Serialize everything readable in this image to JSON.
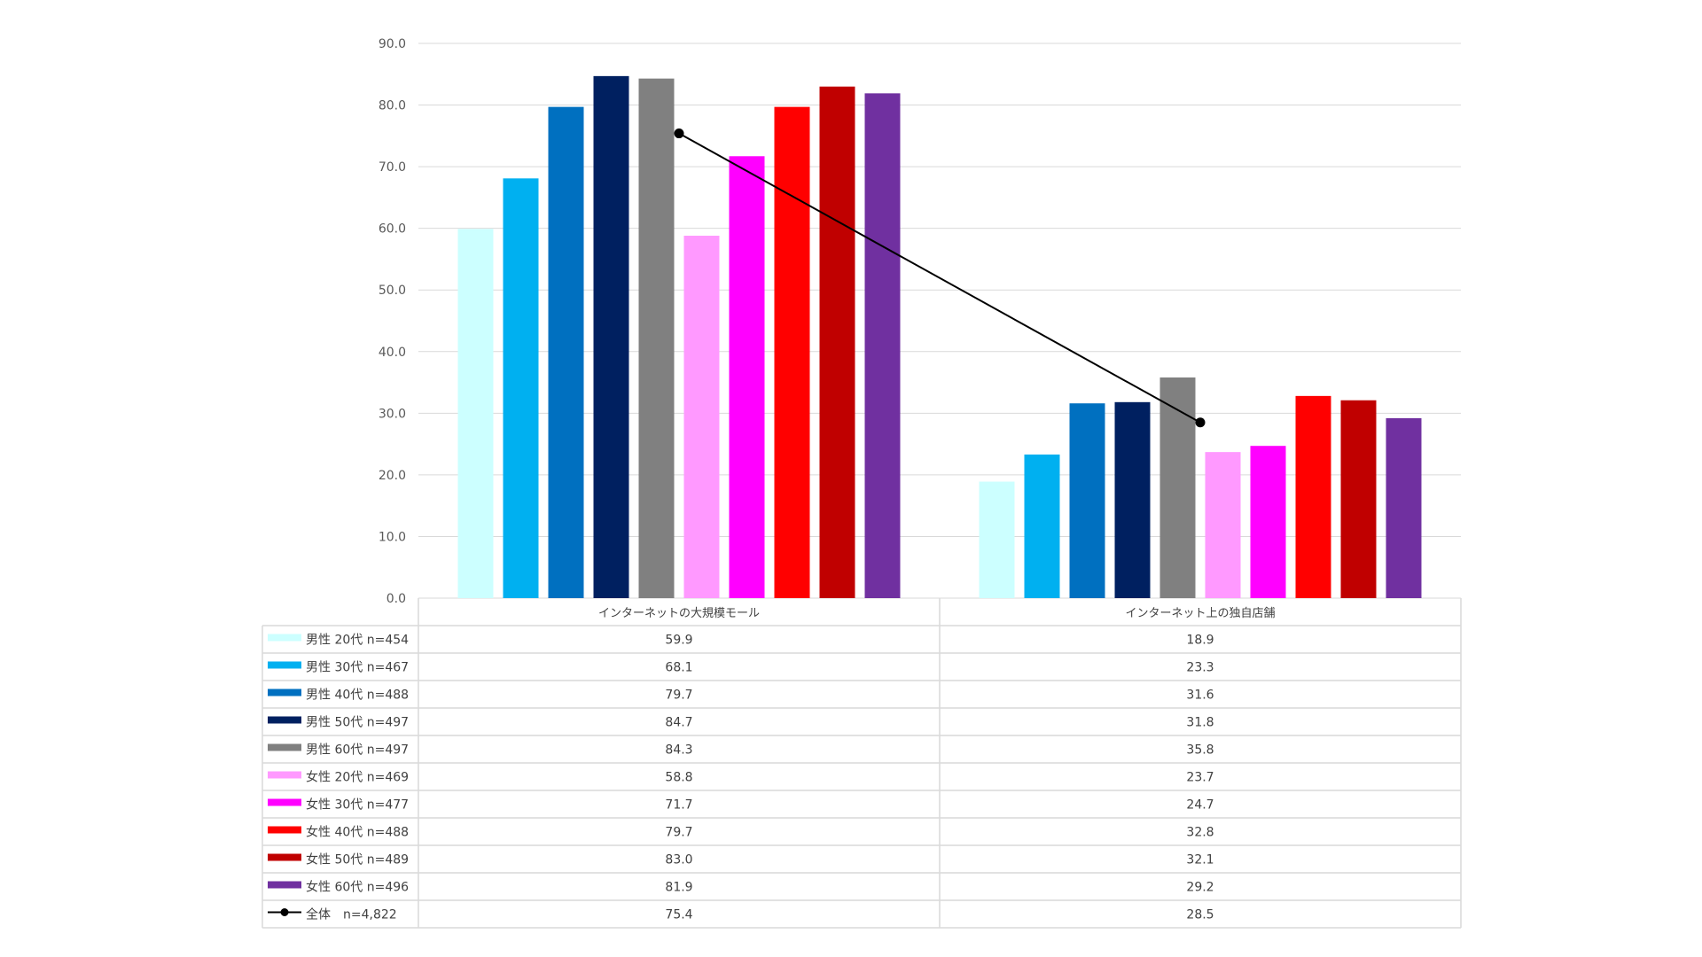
{
  "chart_data": {
    "type": "bar",
    "categories": [
      "インターネットの大規模モール",
      "インターネット上の独自店舗"
    ],
    "ylim": [
      0,
      90
    ],
    "yticks": [
      "0.0",
      "10.0",
      "20.0",
      "30.0",
      "40.0",
      "50.0",
      "60.0",
      "70.0",
      "80.0",
      "90.0"
    ],
    "grid": true,
    "legend": "data-table-left",
    "series": [
      {
        "name": "男性 20代 n=454",
        "color": "#CCFFFF",
        "values": [
          59.9,
          18.9
        ],
        "labels": [
          "59.9",
          "18.9"
        ]
      },
      {
        "name": "男性 30代 n=467",
        "color": "#00B0F0",
        "values": [
          68.1,
          23.3
        ],
        "labels": [
          "68.1",
          "23.3"
        ]
      },
      {
        "name": "男性 40代 n=488",
        "color": "#0070C0",
        "values": [
          79.7,
          31.6
        ],
        "labels": [
          "79.7",
          "31.6"
        ]
      },
      {
        "name": "男性 50代 n=497",
        "color": "#002060",
        "values": [
          84.7,
          31.8
        ],
        "labels": [
          "84.7",
          "31.8"
        ]
      },
      {
        "name": "男性 60代 n=497",
        "color": "#808080",
        "values": [
          84.3,
          35.8
        ],
        "labels": [
          "84.3",
          "35.8"
        ]
      },
      {
        "name": "女性 20代 n=469",
        "color": "#FF99FF",
        "values": [
          58.8,
          23.7
        ],
        "labels": [
          "58.8",
          "23.7"
        ]
      },
      {
        "name": "女性 30代 n=477",
        "color": "#FF00FF",
        "values": [
          71.7,
          24.7
        ],
        "labels": [
          "71.7",
          "24.7"
        ]
      },
      {
        "name": "女性 40代 n=488",
        "color": "#FF0000",
        "values": [
          79.7,
          32.8
        ],
        "labels": [
          "79.7",
          "32.8"
        ]
      },
      {
        "name": "女性 50代 n=489",
        "color": "#C00000",
        "values": [
          83.0,
          32.1
        ],
        "labels": [
          "83.0",
          "32.1"
        ]
      },
      {
        "name": "女性 60代 n=496",
        "color": "#7030A0",
        "values": [
          81.9,
          29.2
        ],
        "labels": [
          "81.9",
          "29.2"
        ]
      }
    ],
    "line_series": {
      "name": "全体　n=4,822",
      "color": "#000000",
      "values": [
        75.4,
        28.5
      ],
      "labels": [
        "75.4",
        "28.5"
      ]
    }
  }
}
